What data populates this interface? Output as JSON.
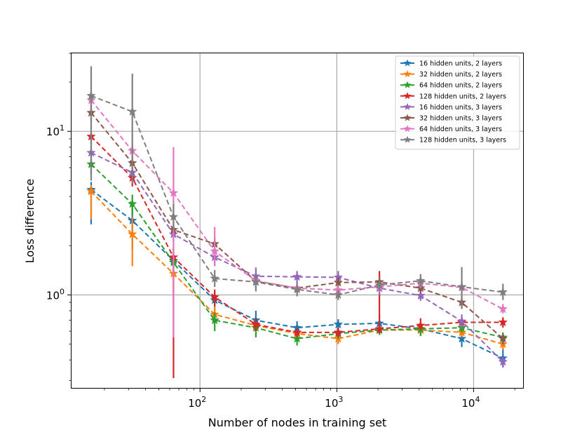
{
  "chart_data": {
    "type": "line",
    "title": "",
    "xlabel": "Number of nodes in training set",
    "ylabel": "Loss difference",
    "xscale": "log",
    "yscale": "log",
    "xlim": [
      11.5,
      23000
    ],
    "ylim": [
      0.27,
      30
    ],
    "grid": true,
    "legend_position": "top-right",
    "x": [
      16,
      32,
      64,
      128,
      256,
      512,
      1024,
      2048,
      4096,
      8192,
      16384
    ],
    "x_major_ticks": [
      100,
      1000,
      10000
    ],
    "x_tick_labels": [
      {
        "base": "10",
        "exp": "2"
      },
      {
        "base": "10",
        "exp": "3"
      },
      {
        "base": "10",
        "exp": "4"
      }
    ],
    "y_major_ticks": [
      1,
      10
    ],
    "y_tick_labels": [
      {
        "base": "10",
        "exp": "0"
      },
      {
        "base": "10",
        "exp": "1"
      }
    ],
    "series": [
      {
        "name": "16 hidden units, 2 layers",
        "color": "#1f77b4",
        "values": [
          4.4,
          2.85,
          1.62,
          0.93,
          0.7,
          0.63,
          0.66,
          0.67,
          0.62,
          0.54,
          0.41
        ],
        "err_low": [
          2.7,
          1.9,
          1.25,
          0.8,
          0.6,
          0.57,
          0.61,
          0.6,
          0.57,
          0.48,
          0.36
        ],
        "err_high": [
          4.9,
          3.7,
          1.95,
          1.05,
          0.8,
          0.69,
          0.71,
          0.76,
          0.67,
          0.6,
          0.47
        ]
      },
      {
        "name": "32 hidden units, 2 layers",
        "color": "#ff7f0e",
        "values": [
          4.3,
          2.35,
          1.35,
          0.76,
          0.65,
          0.58,
          0.54,
          0.61,
          0.61,
          0.59,
          0.5
        ],
        "err_low": [
          2.9,
          1.5,
          0.95,
          0.68,
          0.6,
          0.54,
          0.5,
          0.57,
          0.57,
          0.55,
          0.46
        ],
        "err_high": [
          4.7,
          3.0,
          1.55,
          0.85,
          0.7,
          0.62,
          0.58,
          0.65,
          0.65,
          0.63,
          0.54
        ]
      },
      {
        "name": "64 hidden units, 2 layers",
        "color": "#2ca02c",
        "values": [
          6.3,
          3.6,
          1.58,
          0.7,
          0.63,
          0.54,
          0.58,
          0.61,
          0.62,
          0.63,
          0.55
        ],
        "err_low": [
          5.5,
          3.1,
          1.35,
          0.6,
          0.55,
          0.49,
          0.54,
          0.57,
          0.56,
          0.59,
          0.51
        ],
        "err_high": [
          6.8,
          4.1,
          1.75,
          0.78,
          0.7,
          0.59,
          0.62,
          0.65,
          0.68,
          0.67,
          0.59
        ]
      },
      {
        "name": "128 hidden units, 2 layers",
        "color": "#d62728",
        "values": [
          9.3,
          5.2,
          1.7,
          0.97,
          0.66,
          0.59,
          0.59,
          0.62,
          0.65,
          0.68,
          0.68
        ],
        "err_low": [
          8.4,
          4.6,
          0.31,
          0.85,
          0.6,
          0.55,
          0.55,
          0.58,
          0.61,
          0.63,
          0.63
        ],
        "err_high": [
          10.0,
          5.9,
          1.95,
          1.08,
          0.72,
          0.63,
          0.63,
          1.4,
          0.72,
          0.73,
          0.73
        ]
      },
      {
        "name": "16 hidden units, 3 layers",
        "color": "#9467bd",
        "values": [
          7.4,
          5.6,
          2.35,
          1.7,
          1.3,
          1.29,
          1.28,
          1.1,
          0.99,
          0.69,
          0.39
        ],
        "err_low": [
          5.5,
          4.9,
          2.1,
          1.5,
          1.15,
          1.18,
          1.17,
          1.0,
          0.92,
          0.62,
          0.36
        ],
        "err_high": [
          8.2,
          6.3,
          2.6,
          1.9,
          1.47,
          1.4,
          1.4,
          1.2,
          1.06,
          0.76,
          0.42
        ]
      },
      {
        "name": "32 hidden units, 3 layers",
        "color": "#8c564b",
        "values": [
          13.0,
          6.4,
          2.5,
          2.05,
          1.21,
          1.1,
          1.19,
          1.2,
          1.1,
          0.9,
          0.54
        ],
        "err_low": [
          11.5,
          5.8,
          2.3,
          1.85,
          1.1,
          1.02,
          1.1,
          1.1,
          1.02,
          0.83,
          0.5
        ],
        "err_high": [
          14.5,
          7.0,
          2.7,
          2.25,
          1.32,
          1.18,
          1.28,
          1.3,
          1.18,
          0.97,
          0.58
        ]
      },
      {
        "name": "64 hidden units, 3 layers",
        "color": "#e377c2",
        "values": [
          15.5,
          7.6,
          4.2,
          1.85,
          1.22,
          1.1,
          1.07,
          1.12,
          1.18,
          1.11,
          0.82
        ],
        "err_low": [
          13.5,
          6.9,
          0.55,
          1.5,
          1.12,
          1.02,
          1.0,
          1.04,
          1.1,
          1.03,
          0.77
        ],
        "err_high": [
          17.5,
          8.3,
          8.0,
          2.6,
          1.32,
          1.18,
          1.14,
          1.2,
          1.26,
          1.2,
          0.88
        ]
      },
      {
        "name": "128 hidden units, 3 layers",
        "color": "#7f7f7f",
        "values": [
          16.5,
          13.2,
          3.0,
          1.26,
          1.2,
          1.08,
          1.0,
          1.15,
          1.22,
          1.12,
          1.04
        ],
        "err_low": [
          5.0,
          4.8,
          2.5,
          1.12,
          1.05,
          0.98,
          0.93,
          1.06,
          1.12,
          0.82,
          0.93
        ],
        "err_high": [
          25.0,
          22.5,
          3.6,
          1.42,
          1.33,
          1.18,
          1.07,
          1.25,
          1.34,
          1.48,
          1.17
        ]
      }
    ]
  }
}
